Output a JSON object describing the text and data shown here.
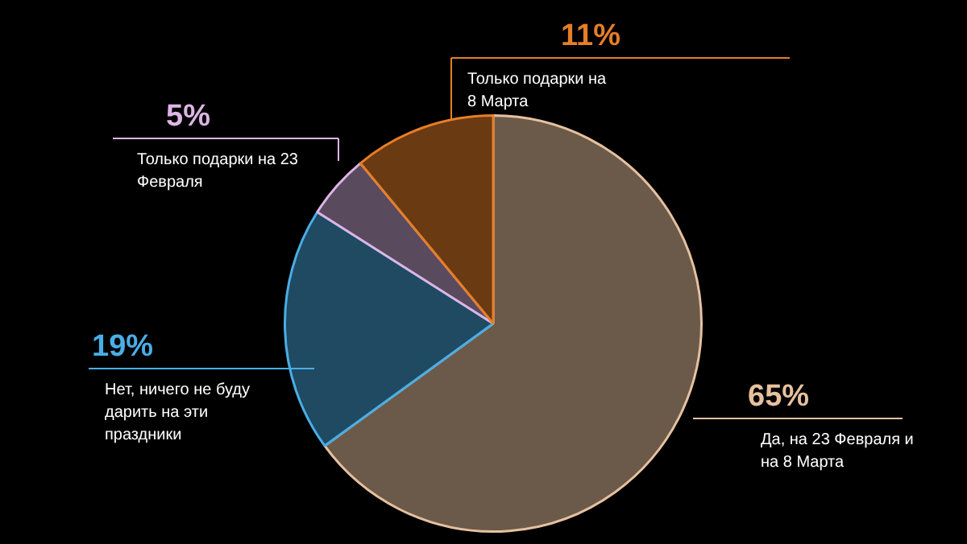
{
  "chart_data": {
    "type": "pie",
    "categories": [
      "Да, на 23 Февраля и на 8 Марта",
      "Нет, ничего не буду дарить на эти праздники",
      "Только подарки на 23 Февраля",
      "Только подарки на 8 Марта"
    ],
    "values": [
      65,
      19,
      5,
      11
    ],
    "colors": [
      "#6b5a4a",
      "#1f4a62",
      "#5a4a5e",
      "#6a3a12"
    ],
    "value_labels": [
      "65%",
      "19%",
      "5%",
      "11%"
    ]
  }
}
